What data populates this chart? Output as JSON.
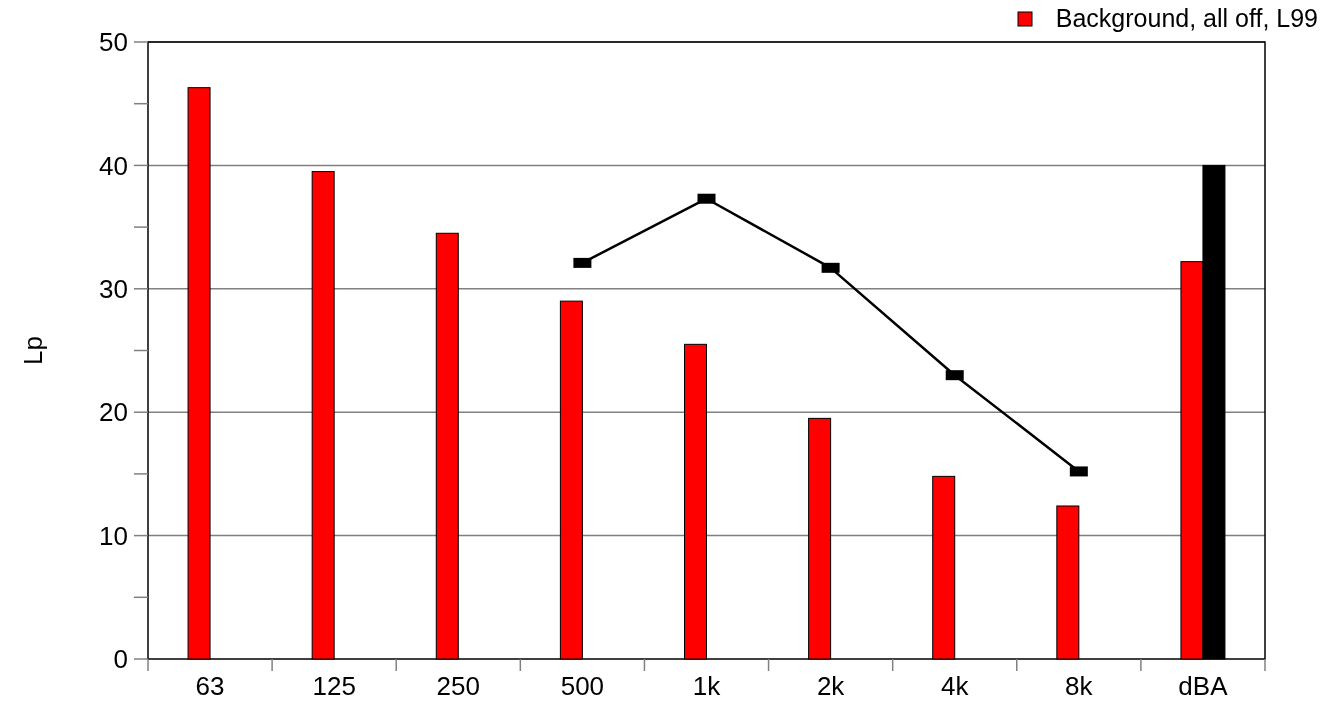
{
  "chart_data": {
    "type": "bar",
    "ylabel": "Lp",
    "categories": [
      "63",
      "125",
      "250",
      "500",
      "1k",
      "2k",
      "4k",
      "8k",
      "dBA"
    ],
    "series": [
      {
        "name": "Background, all off, L99",
        "color": "#ff0000",
        "values": [
          46.3,
          39.5,
          34.5,
          29.0,
          25.5,
          19.5,
          14.8,
          12.4,
          32.2
        ]
      },
      {
        "color": "#000000",
        "values": [
          null,
          null,
          null,
          null,
          null,
          null,
          null,
          null,
          40
        ]
      },
      {
        "type": "line",
        "color": "#000000",
        "marker": "square",
        "values": [
          null,
          null,
          null,
          32.1,
          37.3,
          31.7,
          23.0,
          15.2,
          null
        ]
      }
    ],
    "ylim": [
      0,
      50
    ],
    "yticks": [
      0,
      {
        "value": 5,
        "label": null
      },
      10,
      {
        "value": 15,
        "label": null
      },
      20,
      {
        "value": 25,
        "label": null
      },
      30,
      {
        "value": 35,
        "label": null
      },
      40,
      {
        "value": 45,
        "label": null
      },
      50
    ],
    "grid": "y",
    "legend": "top right"
  }
}
